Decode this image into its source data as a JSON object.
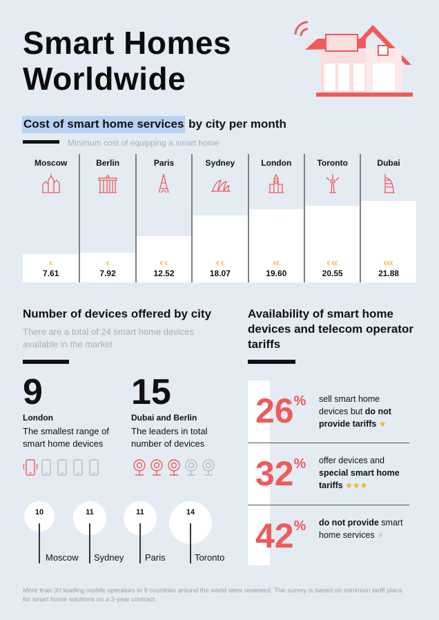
{
  "title": {
    "line1": "Smart Homes",
    "line2": "Worldwide"
  },
  "cost": {
    "heading_highlight": "Cost of smart home services",
    "heading_rest": " by city per month",
    "subtitle": "Minimum cost of equipping a smart home"
  },
  "chart_data": [
    {
      "type": "bar",
      "title": "Cost of smart home services by city per month",
      "subtitle": "Minimum cost of equipping a smart home",
      "categories": [
        "Moscow",
        "Berlin",
        "Paris",
        "Sydney",
        "London",
        "Toronto",
        "Dubai"
      ],
      "values": [
        7.61,
        7.92,
        12.52,
        18.07,
        19.6,
        20.55,
        21.88
      ],
      "value_labels": [
        "7.61",
        "7.92",
        "12.52",
        "18.07",
        "19.60",
        "20.55",
        "21.88"
      ],
      "price_tier": [
        "€",
        "€",
        "€ €",
        "€ €",
        "€€",
        "€ €€",
        "€€€"
      ],
      "icons": [
        "kremlin-icon",
        "brandenburg-gate-icon",
        "eiffel-tower-icon",
        "opera-house-icon",
        "big-ben-icon",
        "cn-tower-icon",
        "burj-al-arab-icon"
      ]
    },
    {
      "type": "scatter",
      "title": "Number of devices offered by city",
      "categories": [
        "Moscow",
        "Sydney",
        "Paris",
        "Toronto"
      ],
      "values": [
        10,
        11,
        11,
        14
      ]
    }
  ],
  "devices": {
    "heading": "Number of devices offered by city",
    "subtitle": "There are a total of 24 smart home devices available in the market",
    "min": {
      "value": "9",
      "city": "London",
      "desc": "The smallest range of smart home devices",
      "highlighted": 1,
      "total_icons": 5
    },
    "max": {
      "value": "15",
      "city": "Dubai and Berlin",
      "desc": "The leaders in total number of devices",
      "highlighted": 3,
      "total_icons": 5
    },
    "dots": [
      {
        "value": "10",
        "city": "Moscow"
      },
      {
        "value": "11",
        "city": "Sydney"
      },
      {
        "value": "11",
        "city": "Paris"
      },
      {
        "value": "14",
        "city": "Toronto"
      }
    ]
  },
  "availability": {
    "heading": "Availability of smart home devices and telecom operator tariffs",
    "rows": [
      {
        "pct": "26",
        "sign": "%",
        "text_plain": "sell smart home devices but ",
        "text_bold": "do not provide tariffs",
        "stars": 1,
        "star_color": "gold"
      },
      {
        "pct": "32",
        "sign": "%",
        "text_plain": "offer devices and ",
        "text_bold": "special smart home tariffs",
        "stars": 3,
        "star_color": "gold"
      },
      {
        "pct": "42",
        "sign": "%",
        "text_plain": " smart home services",
        "text_bold": "do not provide",
        "stars": 1,
        "star_color": "grey"
      }
    ]
  },
  "colors": {
    "background": "#e4ebf2",
    "accent": "#f05a5a",
    "highlight": "#b8d2f2",
    "star": "#f3b21a"
  },
  "footnote": "More than 30 leading mobile operators in 9 countries around the world were reviewed. The survey is based on minimum tariff plans for smart home solutions on a 3-year contract."
}
